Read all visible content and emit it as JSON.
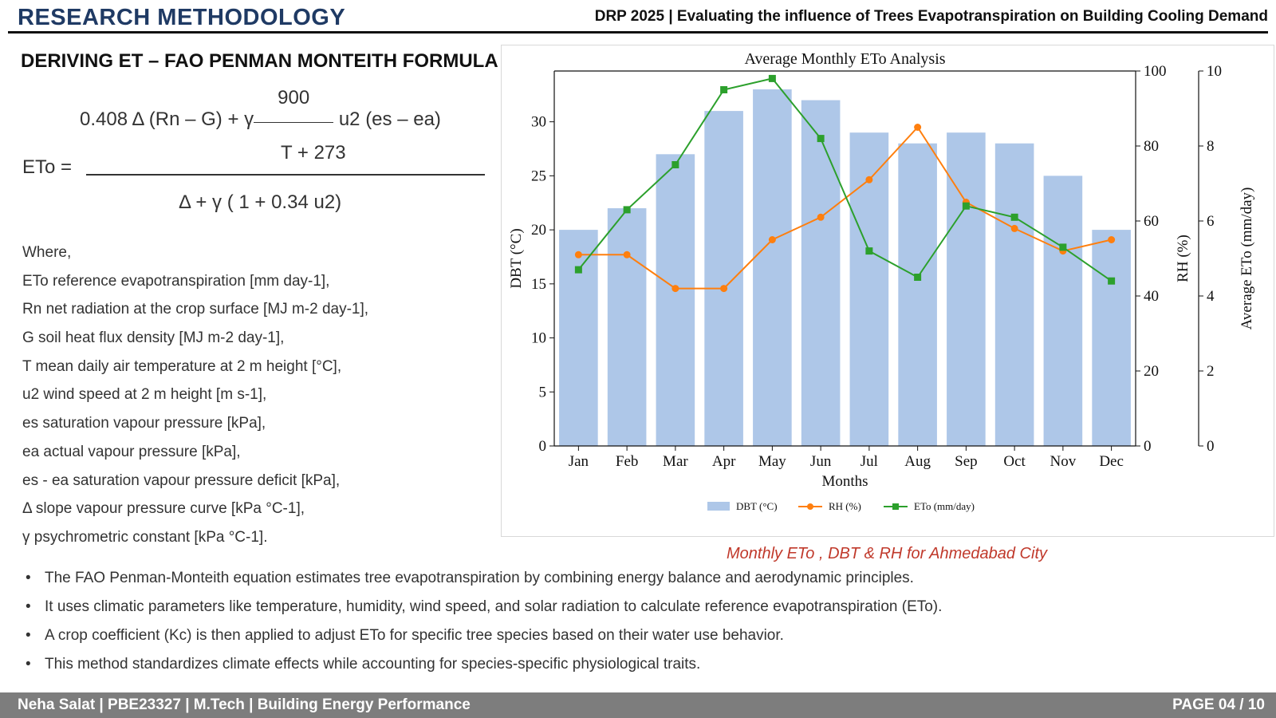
{
  "header": {
    "title": "RESEARCH METHODOLOGY",
    "subtitle": "DRP 2025 | Evaluating the influence of Trees Evapotranspiration on Building Cooling Demand"
  },
  "section": {
    "heading": "DERIVING ET – FAO PENMAN MONTEITH FORMULA"
  },
  "formula": {
    "lhs": "ETo =",
    "numerator_left": "0.408 Δ (Rn – G) + γ",
    "fraction_numerator": "900",
    "fraction_denominator": "T + 273",
    "numerator_right": "u2 (es – ea)",
    "denominator": "Δ + γ ( 1 + 0.34 u2)"
  },
  "where": {
    "intro": "Where,",
    "items": [
      "ETo reference evapotranspiration [mm day-1],",
      "Rn net radiation at the crop surface [MJ m-2 day-1],",
      "G soil heat flux density [MJ m-2 day-1],",
      "T mean daily air temperature at 2 m height [°C],",
      "u2 wind speed at 2 m height [m s-1],",
      "es saturation vapour pressure [kPa],",
      "ea actual vapour pressure [kPa],",
      "es - ea saturation vapour pressure deficit [kPa],",
      "Δ slope vapour pressure curve [kPa °C-1],",
      "γ psychrometric constant [kPa °C-1]."
    ]
  },
  "chart_data": {
    "type": "bar",
    "title": "Average Monthly ETo Analysis",
    "xlabel": "Months",
    "categories": [
      "Jan",
      "Feb",
      "Mar",
      "Apr",
      "May",
      "Jun",
      "Jul",
      "Aug",
      "Sep",
      "Oct",
      "Nov",
      "Dec"
    ],
    "series": [
      {
        "name": "DBT (°C)",
        "type": "bar",
        "axis": "left",
        "color": "#aec7e8",
        "values": [
          20,
          22,
          27,
          31,
          33,
          32,
          29,
          28,
          29,
          28,
          25,
          20
        ]
      },
      {
        "name": "RH (%)",
        "type": "line",
        "axis": "right1",
        "color": "#ff7f0e",
        "marker": "circle",
        "values": [
          51,
          51,
          42,
          42,
          55,
          61,
          71,
          85,
          65,
          58,
          52,
          55
        ]
      },
      {
        "name": "ETo (mm/day)",
        "type": "line",
        "axis": "right2",
        "color": "#2ca02c",
        "marker": "square",
        "values": [
          4.7,
          6.3,
          7.5,
          9.5,
          9.8,
          8.2,
          5.2,
          4.5,
          6.4,
          6.1,
          5.3,
          4.4
        ]
      }
    ],
    "axes": {
      "left": {
        "label": "DBT (°C)",
        "ylim": [
          0,
          34.7
        ],
        "ticks": [
          0,
          5,
          10,
          15,
          20,
          25,
          30
        ]
      },
      "right1": {
        "label": "RH (%)",
        "ylim": [
          0,
          100
        ],
        "ticks": [
          0,
          20,
          40,
          60,
          80,
          100
        ]
      },
      "right2": {
        "label": "Average ETo (mm/day)",
        "ylim": [
          0,
          10
        ],
        "ticks": [
          0,
          2,
          4,
          6,
          8,
          10
        ]
      }
    },
    "grid": false,
    "legend": "bottom"
  },
  "caption": "Monthly ETo , DBT & RH  for Ahmedabad City",
  "bullets": [
    "The FAO Penman-Monteith equation estimates tree evapotranspiration by combining energy balance and aerodynamic principles.",
    "It uses climatic parameters like temperature, humidity, wind speed, and solar radiation to calculate reference evapotranspiration (ETo).",
    "A crop coefficient (Kc) is then applied to adjust ETo for specific tree species based on their water use behavior.",
    "This method standardizes climate effects while accounting for species-specific physiological traits."
  ],
  "footer": {
    "left": "Neha Salat | PBE23327 | M.Tech | Building Energy Performance",
    "right": "PAGE 04 / 10"
  }
}
